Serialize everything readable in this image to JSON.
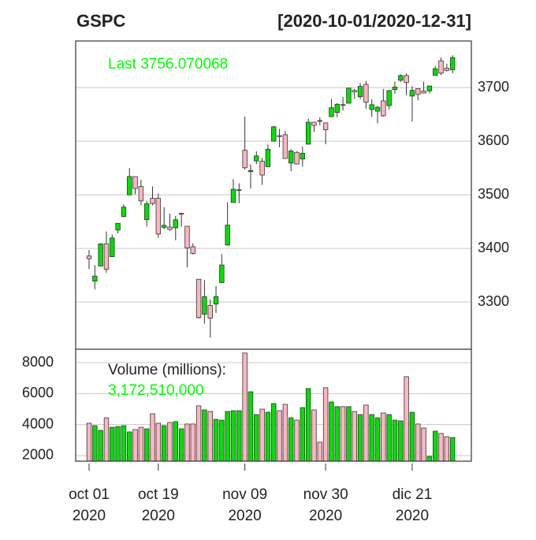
{
  "chart_data": [
    {
      "type": "candlestick",
      "title": "GSPC",
      "subtitle": "[2020-10-01/2020-12-31]",
      "annotation": "Last 3756.070068",
      "categories": [
        "oct 01\n2020",
        null,
        null,
        null,
        null,
        null,
        null,
        null,
        null,
        null,
        null,
        null,
        "oct 19\n2020",
        null,
        null,
        null,
        null,
        null,
        null,
        null,
        null,
        null,
        null,
        null,
        null,
        null,
        null,
        "nov 09\n2020",
        null,
        null,
        null,
        null,
        null,
        null,
        null,
        null,
        null,
        null,
        null,
        null,
        null,
        "nov 30\n2020",
        null,
        null,
        null,
        null,
        null,
        null,
        null,
        null,
        null,
        null,
        null,
        null,
        null,
        null,
        "dic 21\n2020",
        null,
        null,
        null,
        null,
        null,
        null,
        null
      ],
      "open": [
        3385.87,
        3338.94,
        3367.27,
        3408.74,
        3384.56,
        3434.28,
        3459.67,
        3500.02,
        3534.01,
        3515.47,
        3453.72,
        3493.5,
        3493.66,
        3439.38,
        3439.91,
        3438.5,
        3464.9,
        3441.42,
        3403.15,
        3342.48,
        3277.17,
        3293.59,
        3296.2,
        3336.25,
        3406.46,
        3485.74,
        3508.34,
        3583.04,
        3543.26,
        3563.22,
        3562.67,
        3552.57,
        3600.16,
        3610.31,
        3612.09,
        3559.41,
        3579.31,
        3566.82,
        3594.52,
        3635.5,
        3638.55,
        3634.18,
        3645.87,
        3653.78,
        3668.28,
        3670.94,
        3694.73,
        3683.05,
        3705.98,
        3659.13,
        3656.08,
        3675.27,
        3666.41,
        3696.25,
        3713.65,
        3722.39,
        3684.28,
        3698.08,
        3693.42,
        3694.03,
        3723.03,
        3750.01,
        3736.19,
        3733.27
      ],
      "high": [
        3397.18,
        3369.1,
        3409.57,
        3431.56,
        3426.26,
        3447.28,
        3482.34,
        3549.85,
        3534.01,
        3527.94,
        3489.08,
        3515.76,
        3502.42,
        3476.93,
        3464.86,
        3460.53,
        3466.46,
        3441.42,
        3409.51,
        3342.48,
        3341.05,
        3304.93,
        3330.14,
        3389.49,
        3486.25,
        3529.05,
        3521.58,
        3645.99,
        3557.22,
        3581.16,
        3569.02,
        3593.66,
        3628.51,
        3623.11,
        3619.09,
        3585.22,
        3581.23,
        3589.81,
        3642.31,
        3635.5,
        3644.31,
        3634.18,
        3678.45,
        3670.96,
        3682.73,
        3699.2,
        3697.41,
        3708.45,
        3712.39,
        3678.49,
        3665.91,
        3697.61,
        3695.29,
        3711.27,
        3725.12,
        3726.7,
        3702.9,
        3698.26,
        3711.24,
        3703.82,
        3740.51,
        3756.12,
        3744.63,
        3760.2
      ],
      "low": [
        3361.39,
        3323.69,
        3367.27,
        3354.54,
        3384.56,
        3428.15,
        3458.07,
        3499.61,
        3500.86,
        3480.55,
        3440.89,
        3480.45,
        3419.93,
        3435.65,
        3433.06,
        3415.34,
        3440.45,
        3364.86,
        3388.71,
        3268.89,
        3259.82,
        3233.94,
        3279.74,
        3336.25,
        3405.17,
        3485.74,
        3484.34,
        3547.48,
        3511.91,
        3557,
        3518.58,
        3552.57,
        3600.16,
        3588.68,
        3567.33,
        3543.84,
        3556.85,
        3552.77,
        3594.52,
        3617.76,
        3629.33,
        3594.39,
        3645.87,
        3644.84,
        3657.17,
        3670.94,
        3678.88,
        3678.83,
        3660.54,
        3645.18,
        3633.4,
        3645.84,
        3659.62,
        3688.57,
        3710.87,
        3685.84,
        3636.48,
        3676.16,
        3689.28,
        3689.32,
        3723.03,
        3723.31,
        3730.21,
        3726.88
      ],
      "close": [
        3380.8,
        3348.42,
        3408.6,
        3360.97,
        3419.44,
        3446.83,
        3477.14,
        3534.22,
        3511.93,
        3488.67,
        3483.34,
        3483.81,
        3426.92,
        3443.12,
        3435.56,
        3453.49,
        3465.39,
        3400.97,
        3390.68,
        3271.03,
        3310.11,
        3269.96,
        3310.24,
        3369.16,
        3443.44,
        3510.45,
        3509.44,
        3550.5,
        3545.53,
        3572.66,
        3537.01,
        3585.15,
        3626.91,
        3609.53,
        3567.79,
        3581.87,
        3557.54,
        3577.59,
        3635.41,
        3629.65,
        3638.35,
        3621.63,
        3662.45,
        3669.01,
        3666.72,
        3699.12,
        3691.96,
        3702.25,
        3672.82,
        3668.1,
        3663.46,
        3647.49,
        3694.62,
        3701.17,
        3722.48,
        3709.41,
        3694.92,
        3687.26,
        3690.01,
        3703.06,
        3735.36,
        3727.04,
        3732.04,
        3756.07
      ],
      "up_color": "#00e000",
      "down_color": "#ffb6c1",
      "ylim": [
        3212,
        3787
      ],
      "yticks": [
        3300,
        3400,
        3500,
        3600,
        3700
      ],
      "grid": true
    },
    {
      "type": "bar",
      "title": "Volume (millions):",
      "annotation": "3,172,510,000",
      "values": [
        4090,
        3930,
        3630,
        4440,
        3830,
        3880,
        3930,
        3530,
        3680,
        3830,
        3730,
        4700,
        4090,
        3930,
        4140,
        4190,
        3730,
        4040,
        4040,
        5210,
        4950,
        4850,
        4340,
        4290,
        4850,
        4900,
        4900,
        8620,
        6120,
        4650,
        5000,
        4800,
        5360,
        4900,
        5310,
        4440,
        4290,
        5100,
        6330,
        4950,
        2870,
        6380,
        5460,
        5160,
        5160,
        5160,
        4850,
        4650,
        5260,
        4650,
        4440,
        4750,
        4650,
        4290,
        4240,
        7090,
        4800,
        4040,
        3780,
        1950,
        3580,
        3430,
        3220,
        3172.51
      ],
      "ylim": [
        1644,
        8865
      ],
      "yticks": [
        2000,
        4000,
        6000,
        8000
      ],
      "grid": true
    }
  ]
}
